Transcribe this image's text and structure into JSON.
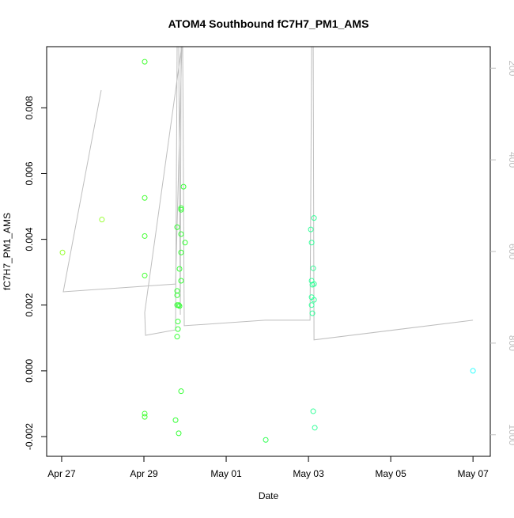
{
  "chart_data": {
    "type": "scatter",
    "title": "ATOM4 Southbound fC7H7_PM1_AMS",
    "xlabel": "Date",
    "ylabel": "fC7H7_PM1_AMS",
    "ylim": [
      -0.0026,
      0.00986
    ],
    "y2lim": [
      153,
      1047
    ],
    "xlim": [
      "04-26 15:15",
      "05-07 10:05"
    ],
    "grid": false,
    "x_ticks": [
      {
        "date": "04-27 00:00",
        "label": "Apr 27"
      },
      {
        "date": "04-29 00:00",
        "label": "Apr 29"
      },
      {
        "date": "05-01 00:00",
        "label": "May 01"
      },
      {
        "date": "05-03 00:00",
        "label": "May 03"
      },
      {
        "date": "05-05 00:00",
        "label": "May 05"
      },
      {
        "date": "05-07 00:00",
        "label": "May 07"
      }
    ],
    "y_ticks": [
      {
        "value": -0.002,
        "label": "-0.002"
      },
      {
        "value": 0.0,
        "label": "0.000"
      },
      {
        "value": 0.002,
        "label": "0.002"
      },
      {
        "value": 0.004,
        "label": "0.004"
      },
      {
        "value": 0.006,
        "label": "0.006"
      },
      {
        "value": 0.008,
        "label": "0.008"
      }
    ],
    "y2_ticks": [
      {
        "value": 200,
        "label": "200"
      },
      {
        "value": 400,
        "label": "400"
      },
      {
        "value": 600,
        "label": "600"
      },
      {
        "value": 800,
        "label": "800"
      },
      {
        "value": 1000,
        "label": "1000"
      }
    ],
    "colors": {
      "line": "#bebebe",
      "axis2": "#bebebe"
    },
    "points": [
      {
        "x": "04-27 00:30",
        "y": 0.0036,
        "color": "#99ff33"
      },
      {
        "x": "04-27 23:30",
        "y": 0.0046,
        "color": "#99ff33"
      },
      {
        "x": "04-29 00:28",
        "y": 0.0094,
        "color": "#44ff33"
      },
      {
        "x": "04-29 00:28",
        "y": 0.00526,
        "color": "#44ff33"
      },
      {
        "x": "04-29 00:28",
        "y": 0.0041,
        "color": "#44ff33"
      },
      {
        "x": "04-29 00:28",
        "y": 0.0029,
        "color": "#44ff33"
      },
      {
        "x": "04-29 00:28",
        "y": -0.0013,
        "color": "#44ff33"
      },
      {
        "x": "04-29 00:28",
        "y": -0.0014,
        "color": "#44ff33"
      },
      {
        "x": "04-29 23:05",
        "y": 0.0056,
        "color": "#33ff33"
      },
      {
        "x": "04-29 21:41",
        "y": 0.0049,
        "color": "#33ff33"
      },
      {
        "x": "04-29 21:41",
        "y": 0.00495,
        "color": "#33ff33"
      },
      {
        "x": "04-29 19:23",
        "y": 0.00437,
        "color": "#33ff33"
      },
      {
        "x": "04-29 21:41",
        "y": 0.00416,
        "color": "#33ff33"
      },
      {
        "x": "04-30 00:00",
        "y": 0.0039,
        "color": "#33ff33"
      },
      {
        "x": "04-29 21:41",
        "y": 0.0036,
        "color": "#33ff33"
      },
      {
        "x": "04-29 20:46",
        "y": 0.0031,
        "color": "#33ff33"
      },
      {
        "x": "04-29 21:41",
        "y": 0.00274,
        "color": "#33ff33"
      },
      {
        "x": "04-29 19:23",
        "y": 0.00243,
        "color": "#33ff33"
      },
      {
        "x": "04-29 19:23",
        "y": 0.0023,
        "color": "#33ff33"
      },
      {
        "x": "04-29 19:23",
        "y": 0.002,
        "color": "#33ff33"
      },
      {
        "x": "04-29 20:18",
        "y": 0.002,
        "color": "#33ff33"
      },
      {
        "x": "04-29 20:46",
        "y": 0.00197,
        "color": "#33ff33"
      },
      {
        "x": "04-29 19:50",
        "y": 0.0015,
        "color": "#33ff33"
      },
      {
        "x": "04-29 19:50",
        "y": 0.00127,
        "color": "#33ff33"
      },
      {
        "x": "04-29 19:23",
        "y": 0.00104,
        "color": "#33ff33"
      },
      {
        "x": "04-29 21:41",
        "y": -0.00062,
        "color": "#33ff33"
      },
      {
        "x": "04-29 18:28",
        "y": -0.0015,
        "color": "#33ff33"
      },
      {
        "x": "04-29 20:18",
        "y": -0.0019,
        "color": "#33ff33"
      },
      {
        "x": "05-01 23:05",
        "y": -0.0021,
        "color": "#33ff55"
      },
      {
        "x": "05-03 03:14",
        "y": 0.00465,
        "color": "#33ff99"
      },
      {
        "x": "05-03 01:23",
        "y": 0.0043,
        "color": "#33ff99"
      },
      {
        "x": "05-03 01:51",
        "y": 0.0039,
        "color": "#33ff99"
      },
      {
        "x": "05-03 02:46",
        "y": 0.00312,
        "color": "#33ff99"
      },
      {
        "x": "05-03 01:51",
        "y": 0.00274,
        "color": "#33ff99"
      },
      {
        "x": "05-03 02:18",
        "y": 0.00262,
        "color": "#33ff99"
      },
      {
        "x": "05-03 03:14",
        "y": 0.00264,
        "color": "#33ff99"
      },
      {
        "x": "05-03 01:51",
        "y": 0.00224,
        "color": "#33ff99"
      },
      {
        "x": "05-03 03:14",
        "y": 0.00216,
        "color": "#33ff99"
      },
      {
        "x": "05-03 01:51",
        "y": 0.002,
        "color": "#33ff99"
      },
      {
        "x": "05-03 02:18",
        "y": 0.00175,
        "color": "#33ff99"
      },
      {
        "x": "05-03 02:46",
        "y": -0.00123,
        "color": "#33ff99"
      },
      {
        "x": "05-03 03:42",
        "y": -0.00173,
        "color": "#33ff99"
      },
      {
        "x": "05-07 00:00",
        "y": 0.0,
        "color": "#33ffff"
      }
    ],
    "line_series_right_axis": [
      {
        "x": "04-27 23:05",
        "y": 248
      },
      {
        "x": "04-27 00:55",
        "y": 688
      },
      {
        "x": "04-29 18:28",
        "y": 671
      },
      {
        "x": "04-29 22:09",
        "y": 150
      },
      {
        "x": "04-29 00:28",
        "y": 733
      },
      {
        "x": "04-29 00:55",
        "y": 783
      },
      {
        "x": "04-29 18:28",
        "y": 771
      },
      {
        "x": "04-29 19:23",
        "y": 150
      },
      {
        "x": "04-29 20:18",
        "y": 150
      },
      {
        "x": "04-29 21:14",
        "y": 738
      },
      {
        "x": "04-29 21:41",
        "y": 150
      },
      {
        "x": "04-29 22:36",
        "y": 150
      },
      {
        "x": "04-29 23:32",
        "y": 762
      },
      {
        "x": "05-01 22:37",
        "y": 750
      },
      {
        "x": "05-03 00:55",
        "y": 750
      },
      {
        "x": "05-03 01:51",
        "y": 150
      },
      {
        "x": "05-03 02:46",
        "y": 150
      },
      {
        "x": "05-03 03:14",
        "y": 793
      },
      {
        "x": "05-07 00:00",
        "y": 750
      }
    ]
  }
}
